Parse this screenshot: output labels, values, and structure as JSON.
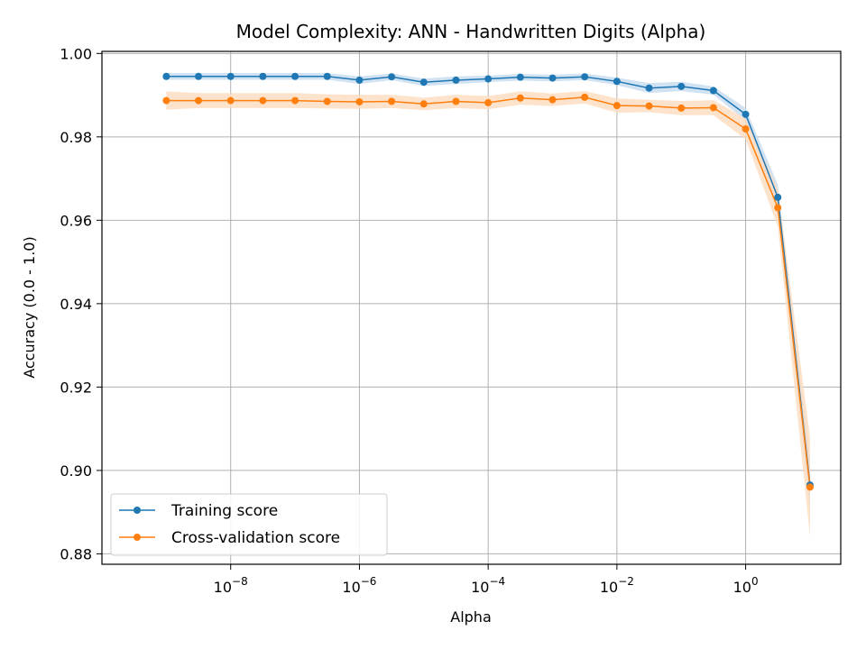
{
  "chart_data": {
    "type": "line",
    "title": "Model Complexity: ANN - Handwritten Digits (Alpha)",
    "xlabel": "Alpha",
    "ylabel": "Accuracy (0.0 - 1.0)",
    "xscale": "log",
    "xlim": [
      1e-10,
      30
    ],
    "ylim": [
      0.8775,
      1.0005
    ],
    "grid": true,
    "legend_position": "lower-left",
    "x_ticks": [
      {
        "base": "10",
        "exp": "−8",
        "value": 1e-08
      },
      {
        "base": "10",
        "exp": "−6",
        "value": 1e-06
      },
      {
        "base": "10",
        "exp": "−4",
        "value": 0.0001
      },
      {
        "base": "10",
        "exp": "−2",
        "value": 0.01
      },
      {
        "base": "10",
        "exp": "0",
        "value": 1
      }
    ],
    "y_ticks": [
      {
        "label": "0.88",
        "value": 0.88
      },
      {
        "label": "0.90",
        "value": 0.9
      },
      {
        "label": "0.92",
        "value": 0.92
      },
      {
        "label": "0.94",
        "value": 0.94
      },
      {
        "label": "0.96",
        "value": 0.96
      },
      {
        "label": "0.98",
        "value": 0.98
      },
      {
        "label": "1.00",
        "value": 1.0
      }
    ],
    "x": [
      1e-09,
      3.16e-09,
      1e-08,
      3.16e-08,
      1e-07,
      3.16e-07,
      1e-06,
      3.16e-06,
      1e-05,
      3.16e-05,
      0.0001,
      0.000316,
      0.001,
      0.00316,
      0.01,
      0.0316,
      0.1,
      0.316,
      1,
      3.16,
      10
    ],
    "series": [
      {
        "name": "Training score",
        "color": "#1f77b4",
        "fill": "#c6dbef",
        "values": [
          0.9945,
          0.9945,
          0.9945,
          0.9945,
          0.9945,
          0.9945,
          0.9936,
          0.9944,
          0.9931,
          0.9936,
          0.9939,
          0.9943,
          0.9941,
          0.9944,
          0.9933,
          0.9917,
          0.9921,
          0.9911,
          0.9854,
          0.9655,
          0.8965
        ],
        "std": [
          0.0008,
          0.0008,
          0.0008,
          0.0008,
          0.0008,
          0.0008,
          0.0009,
          0.0008,
          0.0009,
          0.0009,
          0.0008,
          0.0008,
          0.0008,
          0.0008,
          0.0009,
          0.0012,
          0.0011,
          0.001,
          0.0015,
          0.003,
          0.006
        ]
      },
      {
        "name": "Cross-validation score",
        "color": "#ff7f0e",
        "fill": "#fddcbf",
        "values": [
          0.9887,
          0.9887,
          0.9887,
          0.9887,
          0.9887,
          0.9885,
          0.9884,
          0.9885,
          0.9879,
          0.9885,
          0.9882,
          0.9893,
          0.9889,
          0.9895,
          0.9875,
          0.9874,
          0.9869,
          0.987,
          0.9819,
          0.963,
          0.896
        ],
        "std": [
          0.0022,
          0.0018,
          0.0018,
          0.0018,
          0.0018,
          0.0017,
          0.0017,
          0.0016,
          0.0015,
          0.0016,
          0.0016,
          0.0016,
          0.0015,
          0.0015,
          0.0017,
          0.0015,
          0.0017,
          0.0018,
          0.0025,
          0.0045,
          0.012
        ]
      }
    ]
  }
}
